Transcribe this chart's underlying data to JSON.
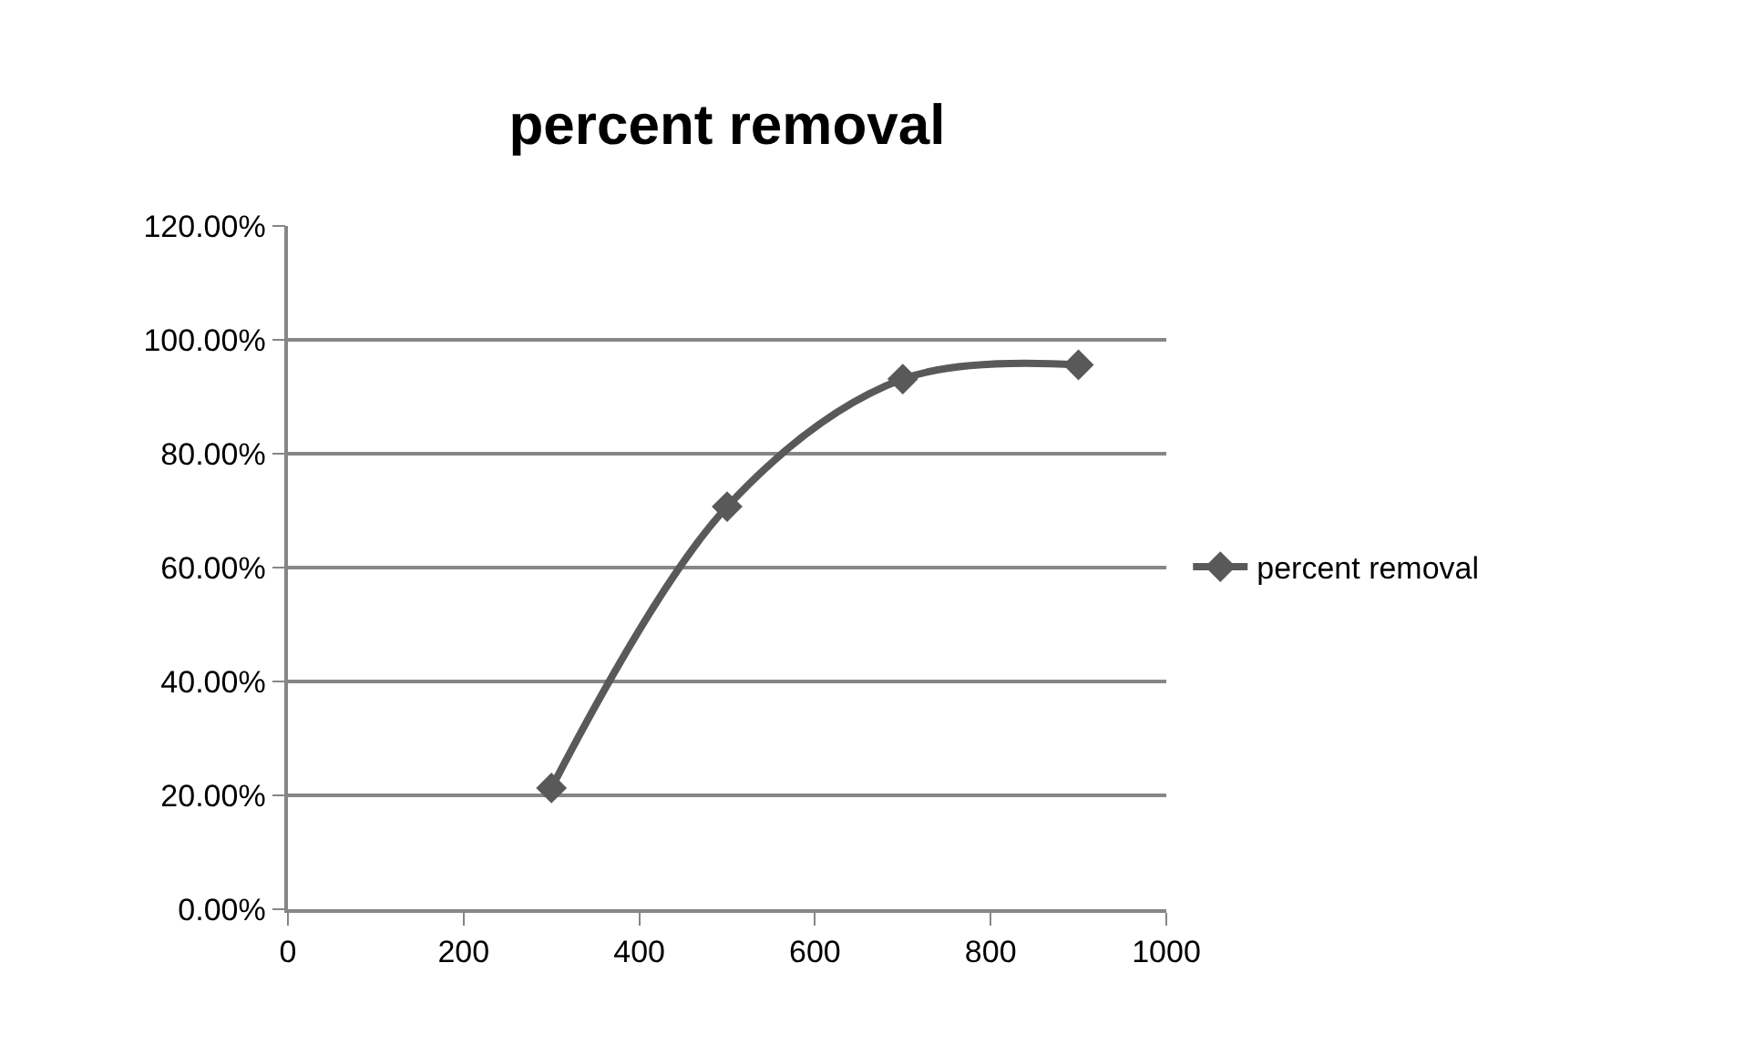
{
  "chart_data": {
    "type": "line",
    "title": "percent removal",
    "x": [
      300,
      500,
      700,
      900
    ],
    "series": [
      {
        "name": "percent removal",
        "color": "#595959",
        "values": [
          21.3,
          70.7,
          93.1,
          95.6
        ]
      }
    ],
    "xlim": [
      0,
      1000
    ],
    "xticks": [
      0,
      200,
      400,
      600,
      800,
      1000
    ],
    "ylim": [
      0,
      120
    ],
    "yticks": [
      {
        "value": 0,
        "label": "0.00%"
      },
      {
        "value": 20,
        "label": "20.00%"
      },
      {
        "value": 40,
        "label": "40.00%"
      },
      {
        "value": 60,
        "label": "60.00%"
      },
      {
        "value": 80,
        "label": "80.00%"
      },
      {
        "value": 100,
        "label": "100.00%"
      },
      {
        "value": 120,
        "label": "120.00%"
      }
    ],
    "grid": "y",
    "legend": "right",
    "marker": "diamond",
    "line_style": "solid"
  }
}
